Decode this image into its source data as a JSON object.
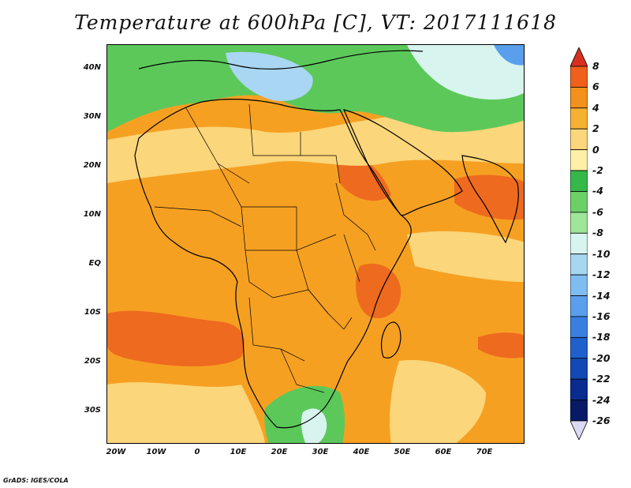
{
  "title": "Temperature at 600hPa [C], VT: 2017111618",
  "credit": "GrADS: IGES/COLA",
  "map": {
    "variable": "Temperature at 600hPa",
    "units": "C",
    "valid_time": "2017111618",
    "lat_labels": [
      "40N",
      "30N",
      "20N",
      "10N",
      "EQ",
      "10S",
      "20S",
      "30S"
    ],
    "lon_labels": [
      "20W",
      "10W",
      "0",
      "10E",
      "20E",
      "30E",
      "40E",
      "50E",
      "60E",
      "70E"
    ]
  },
  "colorbar": {
    "levels": [
      "8",
      "6",
      "4",
      "2",
      "0",
      "-2",
      "-4",
      "-6",
      "-8",
      "-10",
      "-12",
      "-14",
      "-16",
      "-18",
      "-20",
      "-22",
      "-24",
      "-26"
    ],
    "colors": [
      "#d7301f",
      "#f0601a",
      "#f4901c",
      "#f7b132",
      "#fbd67a",
      "#fff0a8",
      "#35b84a",
      "#6bd166",
      "#9fe59a",
      "#d8f4ee",
      "#a5d6f2",
      "#7fbdf0",
      "#5a9fec",
      "#3a7fe0",
      "#2060cc",
      "#1448b4",
      "#0a2c90",
      "#061a66",
      "#dcd9f5"
    ]
  },
  "colors": {
    "warm_orange": "#f6a022",
    "hot": "#ee6a1e",
    "mild": "#fbd67a",
    "green": "#5cc85a",
    "cold": "#a9d6f2"
  }
}
